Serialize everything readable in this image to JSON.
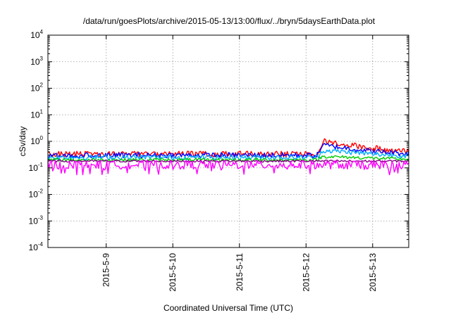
{
  "chart_data": {
    "type": "line",
    "title": "/data/run/goesPlots/archive/2015-05-13/13:00/flux/../bryn/5daysEarthData.plot",
    "xlabel": "Coordinated Universal Time (UTC)",
    "ylabel": "cSv/day",
    "y_scale": "log",
    "ylim": [
      0.0001,
      10000
    ],
    "y_ticks": [
      {
        "base": "10",
        "exp": "-4",
        "value": 0.0001
      },
      {
        "base": "10",
        "exp": "-3",
        "value": 0.001
      },
      {
        "base": "10",
        "exp": "-2",
        "value": 0.01
      },
      {
        "base": "10",
        "exp": "-1",
        "value": 0.1
      },
      {
        "base": "10",
        "exp": "0",
        "value": 1
      },
      {
        "base": "10",
        "exp": "1",
        "value": 10
      },
      {
        "base": "10",
        "exp": "2",
        "value": 100
      },
      {
        "base": "10",
        "exp": "3",
        "value": 1000
      },
      {
        "base": "10",
        "exp": "4",
        "value": 10000
      }
    ],
    "xlim": [
      "2015-05-08T03:00",
      "2015-05-13T13:00"
    ],
    "x_ticks": [
      {
        "label": "2015-5-9",
        "date": "2015-05-09T00:00"
      },
      {
        "label": "2015-5-10",
        "date": "2015-05-10T00:00"
      },
      {
        "label": "2015-5-11",
        "date": "2015-05-11T00:00"
      },
      {
        "label": "2015-5-12",
        "date": "2015-05-12T00:00"
      },
      {
        "label": "2015-5-13",
        "date": "2015-05-13T00:00"
      }
    ],
    "grid": true,
    "legend": "none",
    "series": [
      {
        "color": "#ff0000",
        "points": [
          [
            "2015-05-08T03:00",
            0.33
          ],
          [
            "2015-05-12T04:00",
            0.33
          ],
          [
            "2015-05-12T06:00",
            1.0
          ],
          [
            "2015-05-12T12:00",
            0.85
          ],
          [
            "2015-05-13T00:00",
            0.55
          ],
          [
            "2015-05-13T13:00",
            0.4
          ]
        ]
      },
      {
        "color": "#0000ff",
        "points": [
          [
            "2015-05-08T03:00",
            0.3
          ],
          [
            "2015-05-12T04:00",
            0.3
          ],
          [
            "2015-05-12T06:00",
            0.72
          ],
          [
            "2015-05-12T12:00",
            0.6
          ],
          [
            "2015-05-13T00:00",
            0.42
          ],
          [
            "2015-05-13T13:00",
            0.34
          ]
        ]
      },
      {
        "color": "#00aaff",
        "points": [
          [
            "2015-05-08T03:00",
            0.25
          ],
          [
            "2015-05-12T04:00",
            0.25
          ],
          [
            "2015-05-12T06:00",
            0.45
          ],
          [
            "2015-05-12T12:00",
            0.42
          ],
          [
            "2015-05-13T00:00",
            0.33
          ],
          [
            "2015-05-13T13:00",
            0.28
          ]
        ]
      },
      {
        "color": "#00cc00",
        "points": [
          [
            "2015-05-08T03:00",
            0.2
          ],
          [
            "2015-05-12T04:00",
            0.2
          ],
          [
            "2015-05-12T06:00",
            0.27
          ],
          [
            "2015-05-13T13:00",
            0.21
          ]
        ]
      },
      {
        "color": "#880088",
        "points": [
          [
            "2015-05-08T03:00",
            0.18
          ],
          [
            "2015-05-13T13:00",
            0.18
          ]
        ]
      },
      {
        "color": "#ff00ff",
        "points": [
          [
            "2015-05-08T03:00",
            0.13
          ],
          [
            "2015-05-13T13:00",
            0.13
          ]
        ]
      }
    ]
  }
}
